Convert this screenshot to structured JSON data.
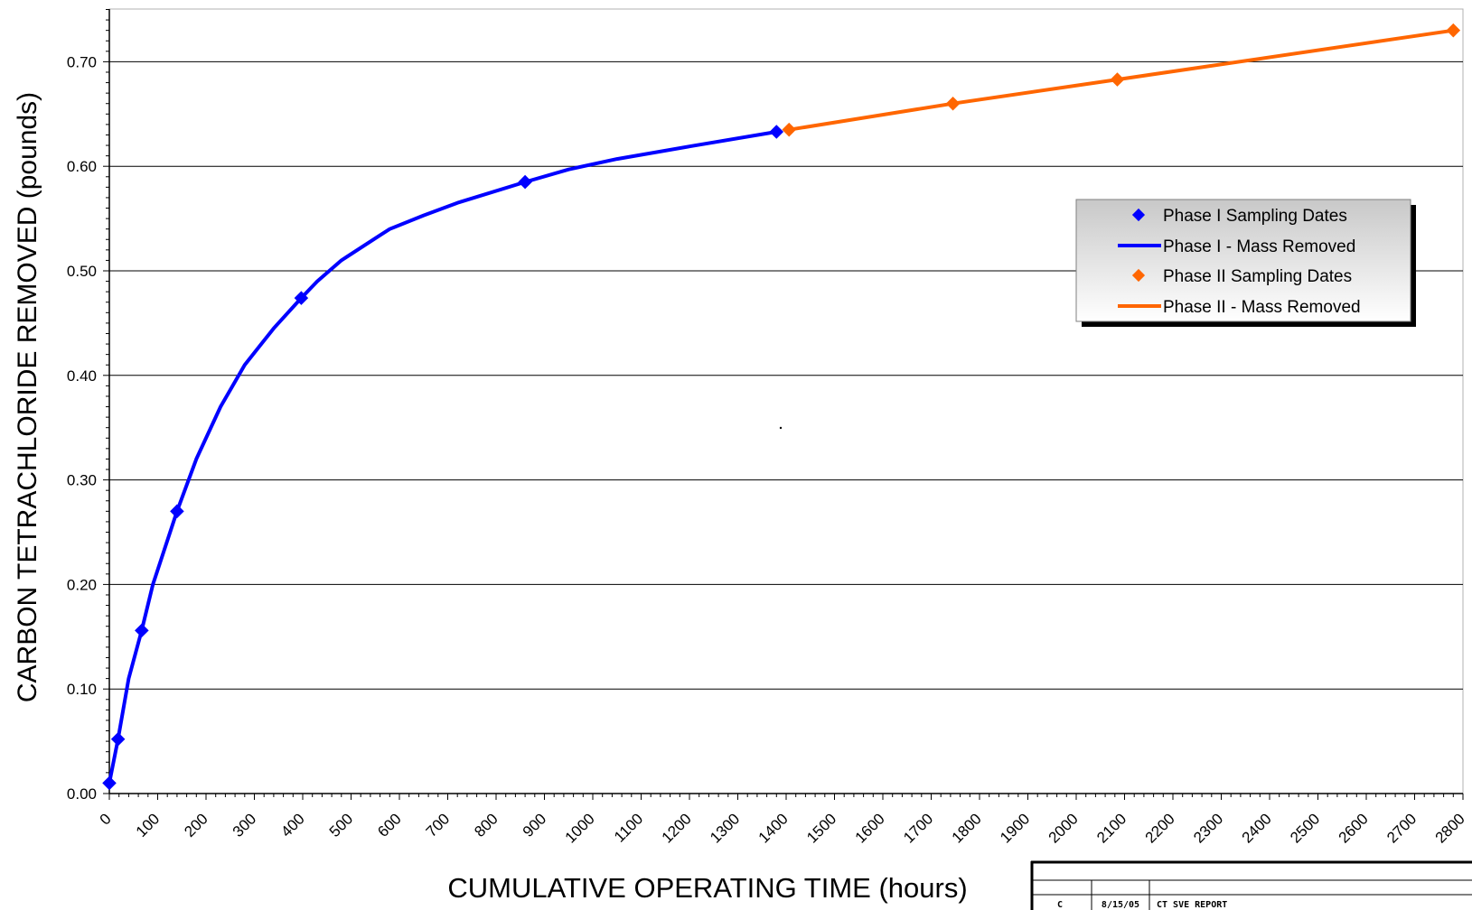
{
  "chart_data": {
    "type": "line",
    "xlabel": "CUMULATIVE OPERATING TIME (hours)",
    "ylabel": "CARBON TETRACHLORIDE REMOVED (pounds)",
    "xlim": [
      0,
      2800
    ],
    "ylim": [
      0,
      0.75
    ],
    "x_ticks": [
      "0",
      "100",
      "200",
      "300",
      "400",
      "500",
      "600",
      "700",
      "800",
      "900",
      "1000",
      "1100",
      "1200",
      "1300",
      "1400",
      "1500",
      "1600",
      "1700",
      "1800",
      "1900",
      "2000",
      "2100",
      "2200",
      "2300",
      "2400",
      "2500",
      "2600",
      "2700",
      "2800"
    ],
    "y_ticks": [
      "0.00",
      "0.10",
      "0.20",
      "0.30",
      "0.40",
      "0.50",
      "0.60",
      "0.70"
    ],
    "grid": "horizontal",
    "legend_position": "right",
    "series": [
      {
        "name": "Phase I Sampling Dates",
        "kind": "markers",
        "color": "#0000ff",
        "points": [
          [
            0,
            0.01
          ],
          [
            18,
            0.052
          ],
          [
            67,
            0.156
          ],
          [
            140,
            0.27
          ],
          [
            397,
            0.474
          ],
          [
            860,
            0.585
          ],
          [
            1380,
            0.633
          ]
        ]
      },
      {
        "name": "Phase I - Mass Removed",
        "kind": "line",
        "color": "#0000ff",
        "points": [
          [
            0,
            0.01
          ],
          [
            18,
            0.052
          ],
          [
            40,
            0.11
          ],
          [
            67,
            0.156
          ],
          [
            90,
            0.2
          ],
          [
            140,
            0.27
          ],
          [
            180,
            0.32
          ],
          [
            230,
            0.37
          ],
          [
            280,
            0.41
          ],
          [
            340,
            0.445
          ],
          [
            397,
            0.474
          ],
          [
            430,
            0.49
          ],
          [
            480,
            0.51
          ],
          [
            560,
            0.534
          ],
          [
            580,
            0.54
          ],
          [
            650,
            0.553
          ],
          [
            720,
            0.565
          ],
          [
            860,
            0.585
          ],
          [
            950,
            0.597
          ],
          [
            1050,
            0.607
          ],
          [
            1200,
            0.619
          ],
          [
            1380,
            0.633
          ]
        ]
      },
      {
        "name": "Phase II Sampling Dates",
        "kind": "markers",
        "color": "#ff6600",
        "points": [
          [
            1406,
            0.635
          ],
          [
            1745,
            0.66
          ],
          [
            2085,
            0.683
          ],
          [
            2780,
            0.73
          ]
        ]
      },
      {
        "name": "Phase II - Mass Removed",
        "kind": "line",
        "color": "#ff6600",
        "points": [
          [
            1406,
            0.635
          ],
          [
            1745,
            0.66
          ],
          [
            2085,
            0.683
          ],
          [
            2780,
            0.73
          ]
        ]
      }
    ]
  },
  "title_block": {
    "revision": "C",
    "date": "8/15/05",
    "description": "CT SVE REPORT"
  }
}
